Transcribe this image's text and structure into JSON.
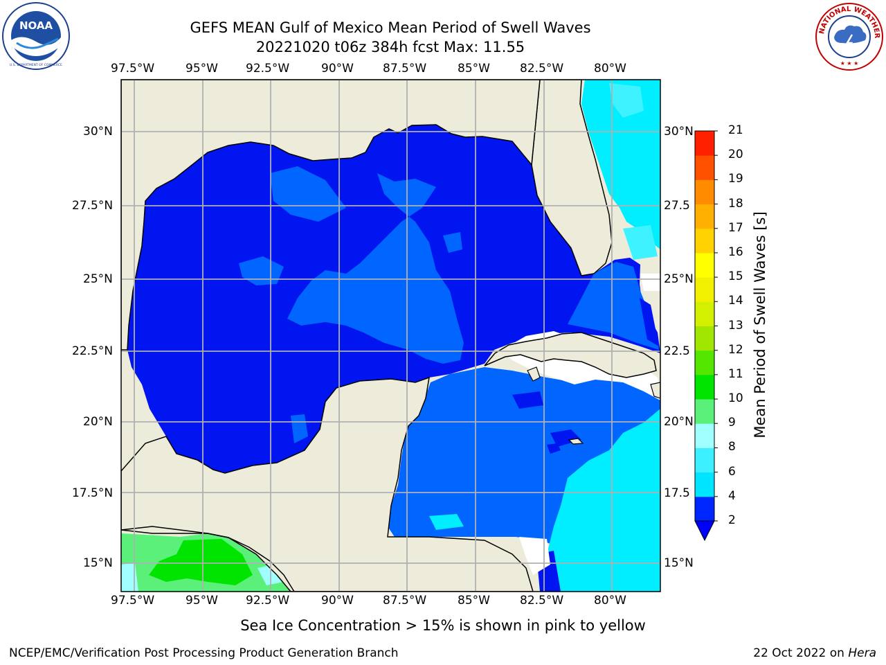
{
  "header": {
    "title_line1": "GEFS MEAN Gulf of Mexico Mean Period of Swell Waves",
    "title_line2": "20221020 t06z 384h fcst   Max: 11.55"
  },
  "logos": {
    "left": "NOAA",
    "right": "NATIONAL WEATHER SERVICE",
    "left_ring": "NATIONAL OCEANIC AND ATMOSPHERIC ADMINISTRATION · U.S. DEPARTMENT OF COMMERCE ·"
  },
  "map": {
    "lon_labels": [
      "97.5°W",
      "95°W",
      "92.5°W",
      "90°W",
      "87.5°W",
      "85°W",
      "82.5°W",
      "80°W"
    ],
    "lat_labels_left": [
      "30°N",
      "27.5°N",
      "25°N",
      "22.5°N",
      "20°N",
      "17.5°N",
      "15°N"
    ],
    "lat_labels_right": [
      "30°N",
      "27.5",
      "25°N",
      "22.5",
      "20°N",
      "17.5",
      "15°N"
    ],
    "colors": {
      "land": "#edecdb",
      "grid": "#b0b0b0",
      "coast": "#000000"
    }
  },
  "colorbar": {
    "label": "Mean Period of Swell Waves [s]",
    "ticks": [
      "2",
      "4",
      "6",
      "8",
      "9",
      "10",
      "11",
      "12",
      "13",
      "14",
      "15",
      "16",
      "17",
      "18",
      "19",
      "20",
      "21"
    ],
    "colors": [
      "#0026ff",
      "#00e5ff",
      "#3cf0ff",
      "#a0ffff",
      "#5af07a",
      "#00e400",
      "#55e600",
      "#a0e600",
      "#d2f000",
      "#f0f000",
      "#ffff00",
      "#ffd200",
      "#ffb000",
      "#ff8c00",
      "#ff5000",
      "#ff2000",
      "#ff0000"
    ],
    "under_color": "#0000ff"
  },
  "footer": {
    "note": "Sea Ice Concentration > 15% is shown in pink to yellow",
    "credit": "NCEP/EMC/Verification Post Processing Product Generation Branch",
    "date": "22 Oct 2022 on",
    "machine": "Hera"
  }
}
